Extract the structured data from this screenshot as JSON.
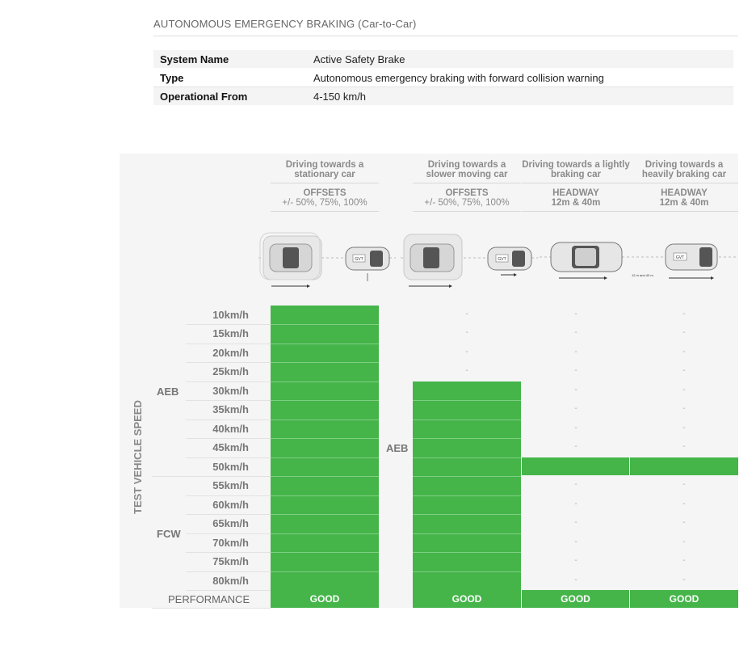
{
  "section_title": "AUTONOMOUS EMERGENCY BRAKING (Car-to-Car)",
  "specs": [
    {
      "label": "System Name",
      "value": "Active Safety Brake"
    },
    {
      "label": "Type",
      "value": "Autonomous emergency braking with forward collision warning"
    },
    {
      "label": "Operational From",
      "value": "4-150 km/h"
    }
  ],
  "matrix": {
    "vertical_label": "TEST VEHICLE SPEED",
    "columns": [
      {
        "title": "Driving towards a stationary car",
        "sub_title": "OFFSETS",
        "sub_value": "+/- 50%, 75%, 100%"
      },
      {
        "title": "Driving towards a slower moving car",
        "sub_title": "OFFSETS",
        "sub_value": "+/- 50%, 75%, 100%"
      },
      {
        "title": "Driving towards a lightly braking car",
        "sub_title": "HEADWAY",
        "sub_value": "12m & 40m"
      },
      {
        "title": "Driving towards a heavily braking car",
        "sub_title": "HEADWAY",
        "sub_value": "12m & 40m"
      }
    ],
    "speeds": [
      "10km/h",
      "15km/h",
      "20km/h",
      "25km/h",
      "30km/h",
      "35km/h",
      "40km/h",
      "45km/h",
      "50km/h",
      "55km/h",
      "60km/h",
      "65km/h",
      "70km/h",
      "75km/h",
      "80km/h"
    ],
    "group_aeb": "AEB",
    "group_fcw": "FCW",
    "mid_label": "AEB",
    "dash": "-",
    "performance_label": "PERFORMANCE",
    "performance": [
      "GOOD",
      "GOOD",
      "GOOD",
      "GOOD"
    ],
    "diagram_labels": {
      "gvt": "GVT",
      "headway": "12 m and 40 m"
    },
    "colors": {
      "good": "#45b54a"
    }
  }
}
